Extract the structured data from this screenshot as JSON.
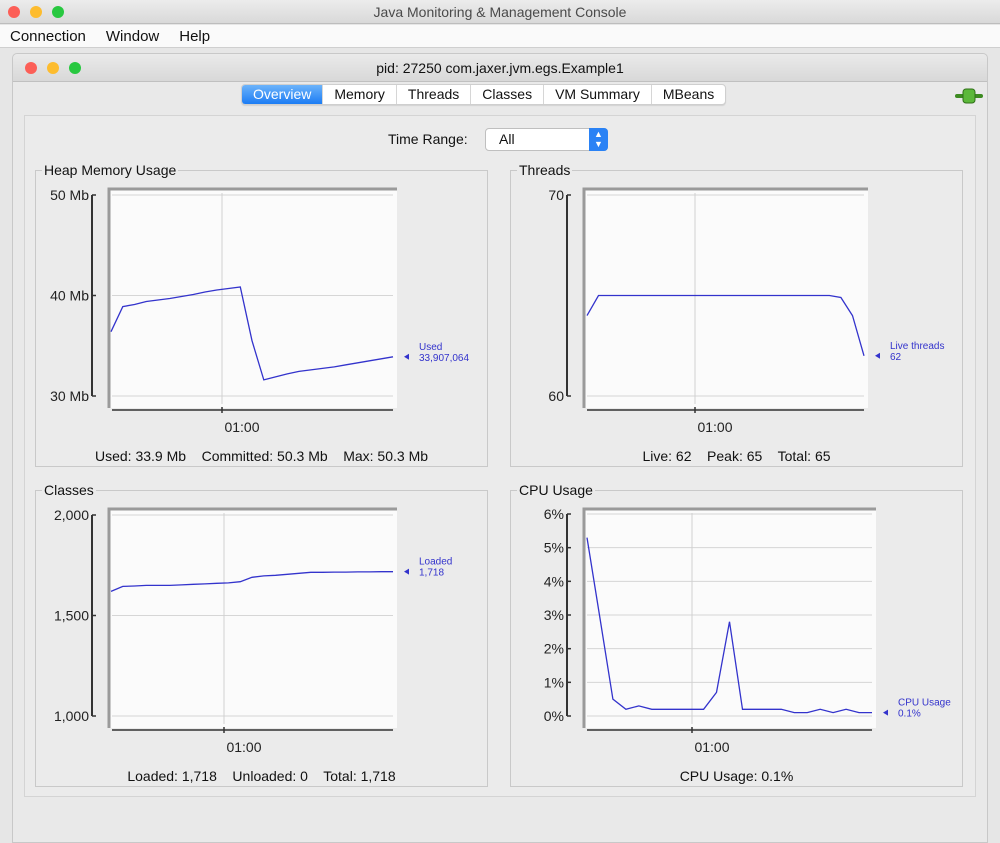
{
  "window": {
    "title": "Java Monitoring & Management Console"
  },
  "menu": [
    "Connection",
    "Window",
    "Help"
  ],
  "inner_window": {
    "title": "pid: 27250 com.jaxer.jvm.egs.Example1"
  },
  "tabs": [
    {
      "label": "Overview",
      "selected": true
    },
    {
      "label": "Memory"
    },
    {
      "label": "Threads"
    },
    {
      "label": "Classes"
    },
    {
      "label": "VM Summary"
    },
    {
      "label": "MBeans"
    }
  ],
  "connection_icon": "green-plug-icon",
  "time_range": {
    "label": "Time Range:",
    "value": "All"
  },
  "colors": {
    "series": "#3333cc",
    "tab_selected": "#1c7cf4"
  },
  "chart_data": [
    {
      "id": "heap",
      "type": "line",
      "title": "Heap Memory Usage",
      "ylim": [
        30,
        50
      ],
      "yticks": [
        "30 Mb",
        "40 Mb",
        "50 Mb"
      ],
      "ytick_values": [
        30,
        40,
        50
      ],
      "xticks": [
        "01:00"
      ],
      "grid": true,
      "series": [
        {
          "name": "Used",
          "label_value": "33,907,064",
          "values": [
            36.4,
            38.9,
            39.1,
            39.4,
            39.55,
            39.7,
            39.9,
            40.1,
            40.35,
            40.55,
            40.7,
            40.85,
            35.5,
            31.6,
            31.9,
            32.2,
            32.45,
            32.6,
            32.75,
            32.9,
            33.1,
            33.3,
            33.5,
            33.7,
            33.9
          ]
        }
      ],
      "summary": "Used: 33.9 Mb    Committed: 50.3 Mb    Max: 50.3 Mb"
    },
    {
      "id": "threads",
      "type": "line",
      "title": "Threads",
      "ylim": [
        60,
        70
      ],
      "yticks": [
        "60",
        "70"
      ],
      "ytick_values": [
        60,
        70
      ],
      "xticks": [
        "01:00"
      ],
      "grid": true,
      "series": [
        {
          "name": "Live threads",
          "label_value": "62",
          "values": [
            64,
            65,
            65,
            65,
            65,
            65,
            65,
            65,
            65,
            65,
            65,
            65,
            65,
            65,
            65,
            65,
            65,
            65,
            65,
            65,
            65,
            65,
            64.9,
            64,
            62
          ]
        }
      ],
      "summary": "Live: 62    Peak: 65    Total: 65"
    },
    {
      "id": "classes",
      "type": "line",
      "title": "Classes",
      "ylim": [
        1000,
        2000
      ],
      "yticks": [
        "1,000",
        "1,500",
        "2,000"
      ],
      "ytick_values": [
        1000,
        1500,
        2000
      ],
      "xticks": [
        "01:00"
      ],
      "grid": true,
      "series": [
        {
          "name": "Loaded",
          "label_value": "1,718",
          "values": [
            1620,
            1645,
            1647,
            1650,
            1650,
            1650,
            1652,
            1655,
            1657,
            1660,
            1662,
            1668,
            1690,
            1697,
            1700,
            1705,
            1710,
            1715,
            1715,
            1716,
            1716,
            1717,
            1717,
            1718,
            1718
          ]
        }
      ],
      "summary": "Loaded: 1,718    Unloaded: 0    Total: 1,718"
    },
    {
      "id": "cpu",
      "type": "line",
      "title": "CPU Usage",
      "ylim": [
        0,
        6
      ],
      "yticks": [
        "0%",
        "1%",
        "2%",
        "3%",
        "4%",
        "5%",
        "6%"
      ],
      "ytick_values": [
        0,
        1,
        2,
        3,
        4,
        5,
        6
      ],
      "xticks": [
        "01:00"
      ],
      "grid": true,
      "series": [
        {
          "name": "CPU Usage",
          "label_value": "0.1%",
          "values": [
            5.3,
            2.9,
            0.5,
            0.2,
            0.3,
            0.2,
            0.2,
            0.2,
            0.2,
            0.2,
            0.7,
            2.8,
            0.2,
            0.2,
            0.2,
            0.2,
            0.1,
            0.1,
            0.2,
            0.1,
            0.2,
            0.1,
            0.1
          ]
        }
      ],
      "summary": "CPU Usage: 0.1%"
    }
  ]
}
